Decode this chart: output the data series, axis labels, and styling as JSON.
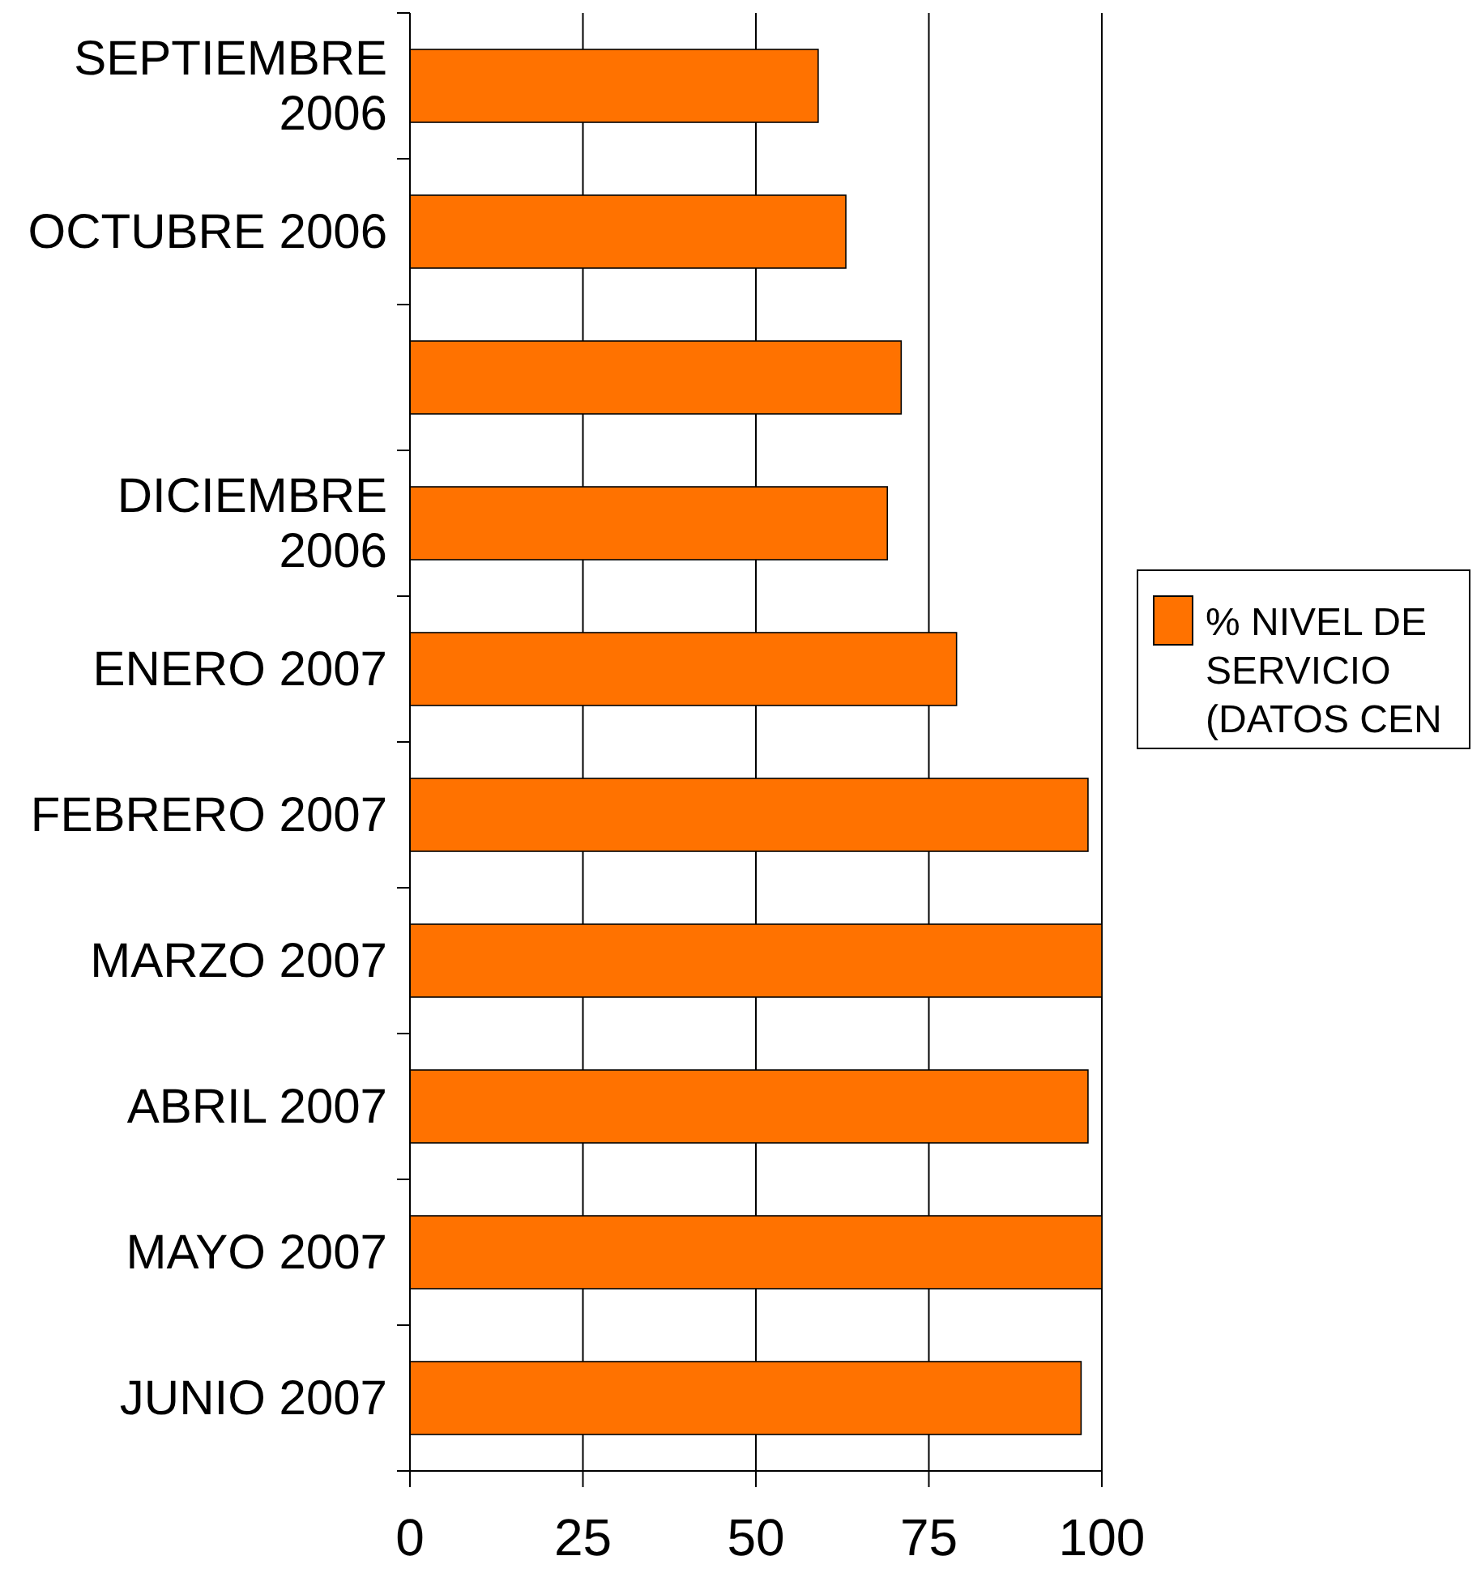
{
  "chart_data": {
    "type": "bar",
    "orientation": "horizontal",
    "categories": [
      "SEPTIEMBRE 2006",
      "OCTUBRE 2006",
      null,
      "DICIEMBRE 2006",
      "ENERO 2007",
      "FEBRERO 2007",
      "MARZO 2007",
      "ABRIL 2007",
      "MAYO 2007",
      "JUNIO 2007"
    ],
    "series": [
      {
        "name": "% NIVEL DE SERVICIO (DATOS CEN",
        "color": "#ff7200",
        "values": [
          59,
          63,
          71,
          69,
          79,
          98,
          100,
          98,
          100,
          97
        ]
      }
    ],
    "xlim": [
      0,
      100
    ],
    "xticks": [
      0,
      25,
      50,
      75,
      100
    ],
    "grid": "x",
    "legend": "right"
  }
}
